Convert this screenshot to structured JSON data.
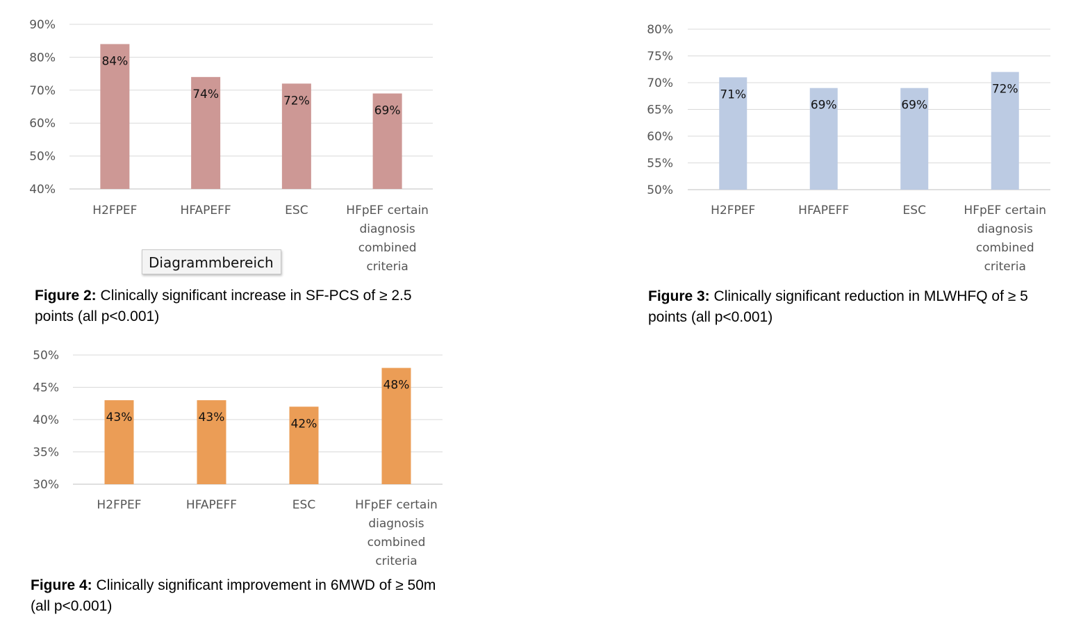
{
  "tooltip": "Diagrammbereich",
  "chart_data": [
    {
      "type": "bar",
      "categories": [
        "H2FPEF",
        "HFAPEFF",
        "ESC",
        "HFpEF certain diagnosis combined criteria"
      ],
      "values": [
        84,
        74,
        72,
        69
      ],
      "data_labels": [
        "84%",
        "74%",
        "72%",
        "69%"
      ],
      "ylim": [
        40,
        90
      ],
      "yticks": [
        "40%",
        "50%",
        "60%",
        "70%",
        "80%",
        "90%"
      ],
      "color": "#cd9895",
      "grid": true,
      "caption_bold": "Figure 2:",
      "caption": " Clinically significant increase in SF-PCS of ≥ 2.5 points (all p<0.001)"
    },
    {
      "type": "bar",
      "categories": [
        "H2FPEF",
        "HFAPEFF",
        "ESC",
        "HFpEF certain diagnosis combined criteria"
      ],
      "values": [
        71,
        69,
        69,
        72
      ],
      "data_labels": [
        "71%",
        "69%",
        "69%",
        "72%"
      ],
      "ylim": [
        50,
        80
      ],
      "yticks": [
        "50%",
        "55%",
        "60%",
        "65%",
        "70%",
        "75%",
        "80%"
      ],
      "color": "#bccbe3",
      "grid": true,
      "caption_bold": "Figure 3:",
      "caption": " Clinically significant reduction in  MLWHFQ of ≥ 5 points (all p<0.001)"
    },
    {
      "type": "bar",
      "categories": [
        "H2FPEF",
        "HFAPEFF",
        "ESC",
        "HFpEF certain diagnosis combined criteria"
      ],
      "values": [
        43,
        43,
        42,
        48
      ],
      "data_labels": [
        "43%",
        "43%",
        "42%",
        "48%"
      ],
      "ylim": [
        30,
        50
      ],
      "yticks": [
        "30%",
        "35%",
        "40%",
        "45%",
        "50%"
      ],
      "color": "#eb9d56",
      "grid": true,
      "caption_bold": "Figure 4:",
      "caption": " Clinically significant improvement in 6MWD of ≥ 50m (all p<0.001)"
    }
  ]
}
